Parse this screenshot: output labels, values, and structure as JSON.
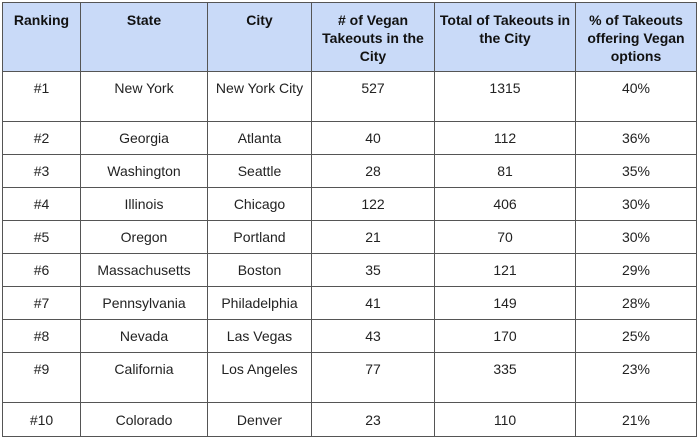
{
  "table": {
    "headers": [
      "Ranking",
      "State",
      "City",
      "# of Vegan Takeouts in the City",
      "Total of Takeouts in the City",
      "% of Takeouts offering Vegan options"
    ],
    "rows": [
      [
        "#1",
        "New York",
        "New York City",
        "527",
        "1315",
        "40%"
      ],
      [
        "#2",
        "Georgia",
        "Atlanta",
        "40",
        "112",
        "36%"
      ],
      [
        "#3",
        "Washington",
        "Seattle",
        "28",
        "81",
        "35%"
      ],
      [
        "#4",
        "Illinois",
        "Chicago",
        "122",
        "406",
        "30%"
      ],
      [
        "#5",
        "Oregon",
        "Portland",
        "21",
        "70",
        "30%"
      ],
      [
        "#6",
        "Massachusetts",
        "Boston",
        "35",
        "121",
        "29%"
      ],
      [
        "#7",
        "Pennsylvania",
        "Philadelphia",
        "41",
        "149",
        "28%"
      ],
      [
        "#8",
        "Nevada",
        "Las Vegas",
        "43",
        "170",
        "25%"
      ],
      [
        "#9",
        "California",
        "Los Angeles",
        "77",
        "335",
        "23%"
      ],
      [
        "#10",
        "Colorado",
        "Denver",
        "23",
        "110",
        "21%"
      ]
    ]
  }
}
